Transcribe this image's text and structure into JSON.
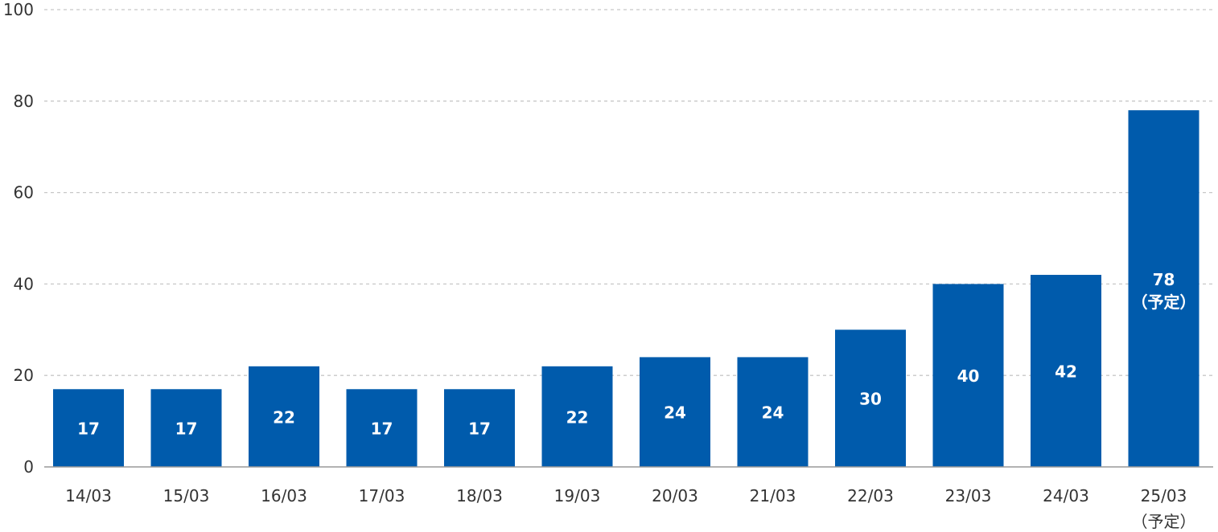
{
  "chart_data": {
    "type": "bar",
    "categories": [
      "14/03",
      "15/03",
      "16/03",
      "17/03",
      "18/03",
      "19/03",
      "20/03",
      "21/03",
      "22/03",
      "23/03",
      "24/03",
      "25/03"
    ],
    "category_sublabels": [
      "",
      "",
      "",
      "",
      "",
      "",
      "",
      "",
      "",
      "",
      "",
      "（予定）"
    ],
    "values": [
      17,
      17,
      22,
      17,
      17,
      22,
      24,
      24,
      30,
      40,
      42,
      78
    ],
    "bar_labels": [
      "17",
      "17",
      "22",
      "17",
      "17",
      "22",
      "24",
      "24",
      "30",
      "40",
      "42",
      "78"
    ],
    "bar_sublabels": [
      "",
      "",
      "",
      "",
      "",
      "",
      "",
      "",
      "",
      "",
      "",
      "（予定）"
    ],
    "ylim": [
      0,
      100
    ],
    "yticks": [
      0,
      20,
      40,
      60,
      80,
      100
    ],
    "grid": true,
    "legend": false,
    "bar_color": "#005BAC",
    "title": "",
    "xlabel": "",
    "ylabel": ""
  }
}
